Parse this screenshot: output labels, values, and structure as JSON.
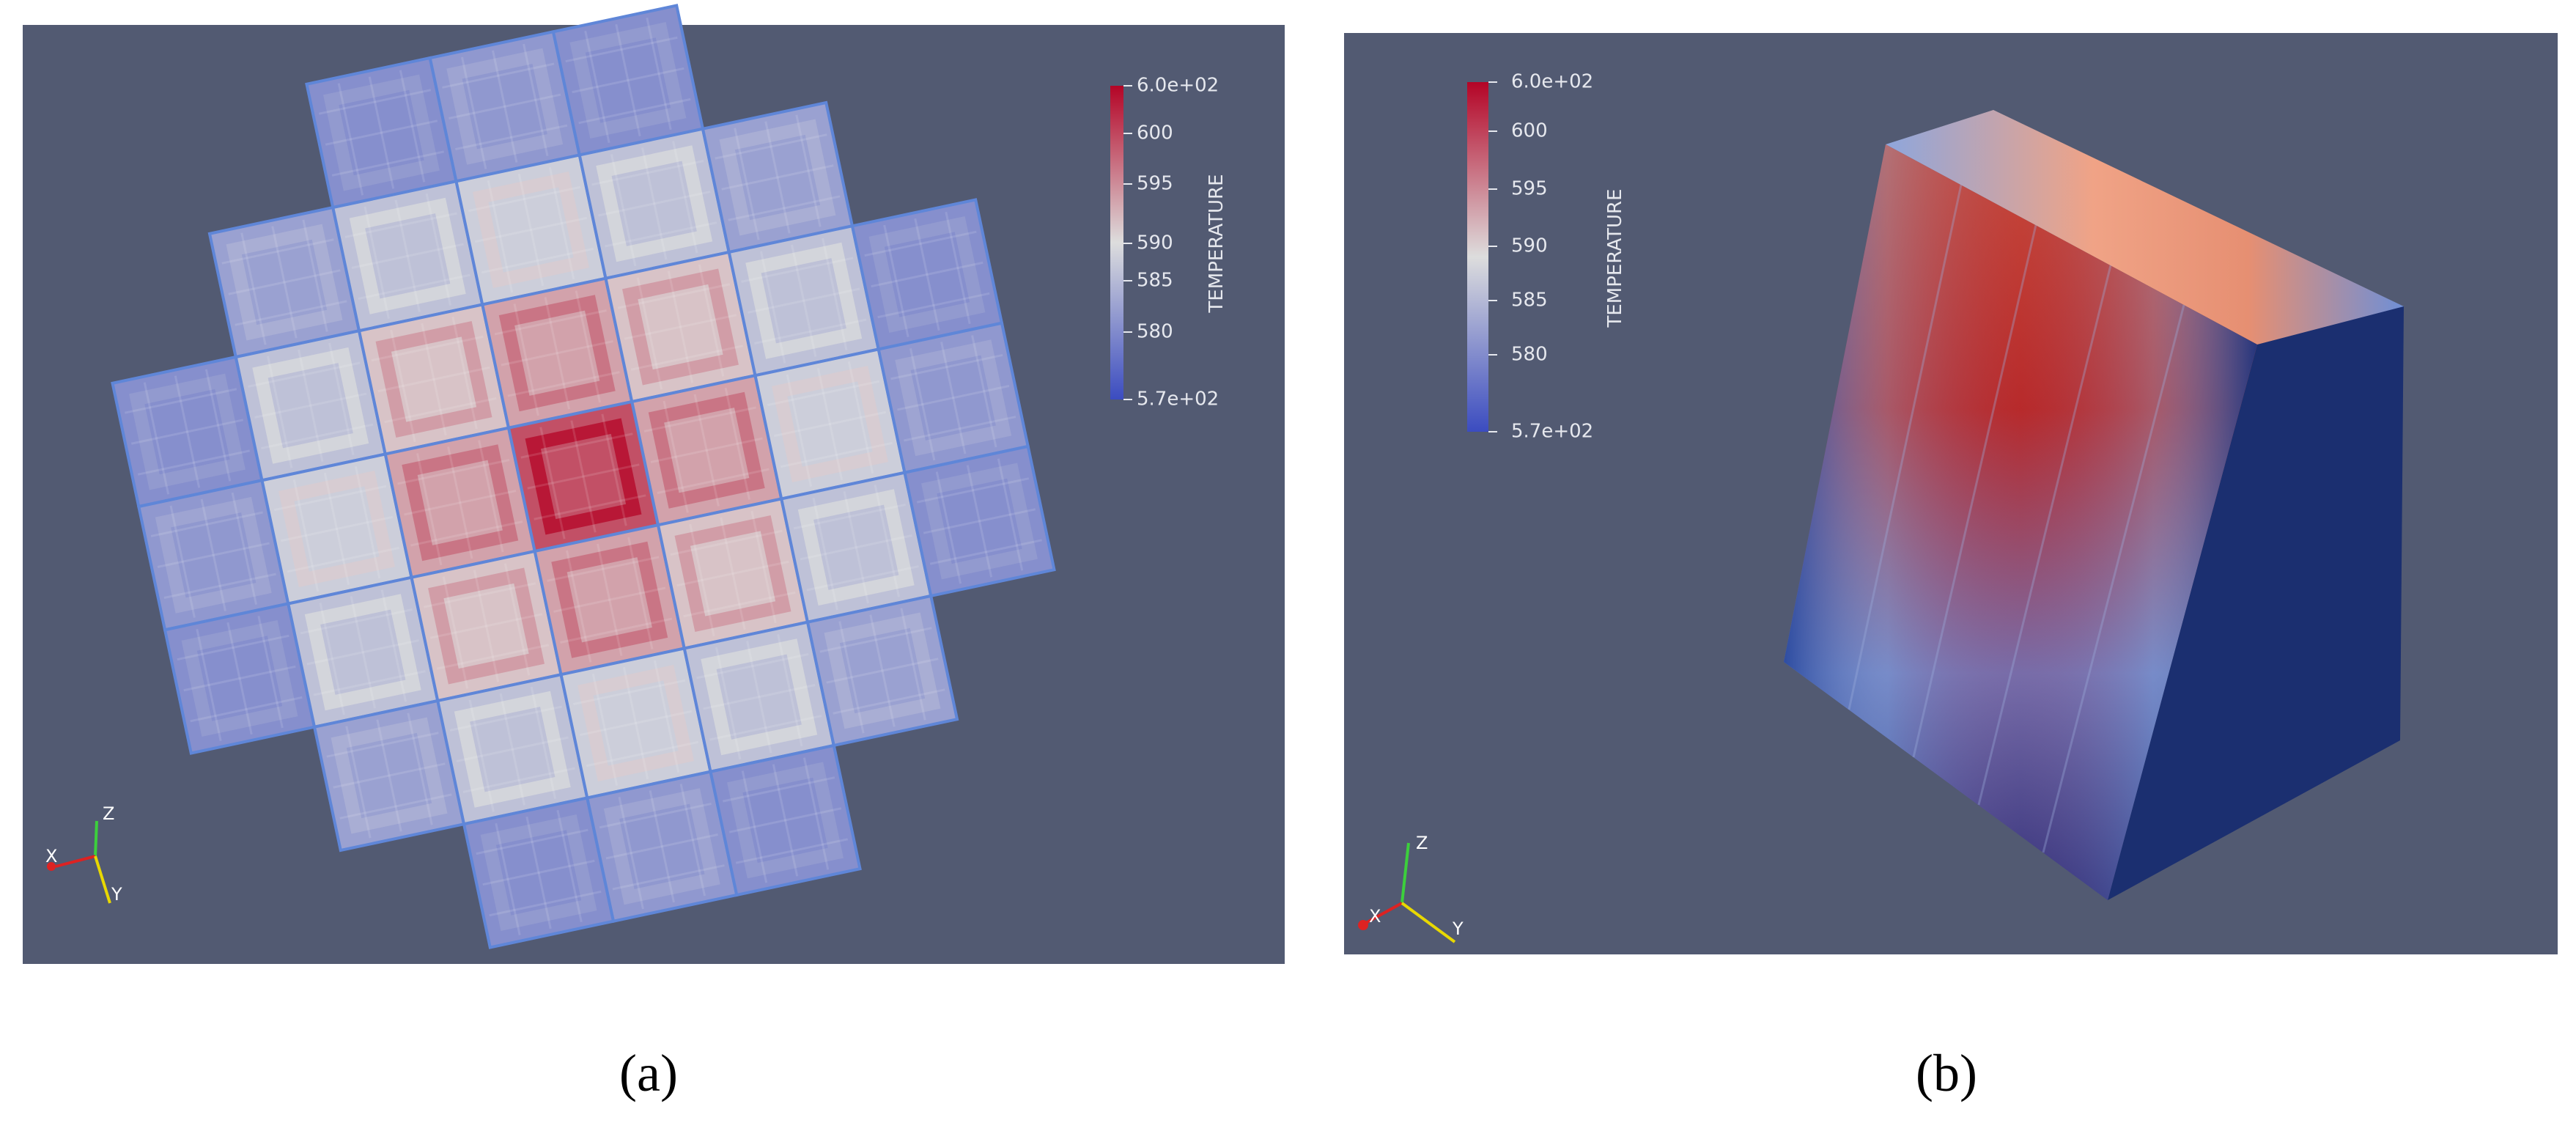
{
  "panels": [
    {
      "caption": "(a)",
      "colorbar": {
        "title": "TEMPERATURE",
        "labels": [
          "6.0e+02",
          "600",
          "595",
          "590",
          "585",
          "580",
          "5.7e+02"
        ]
      },
      "axes": {
        "x": "X",
        "y": "Y",
        "z": "Z"
      }
    },
    {
      "caption": "(b)",
      "colorbar": {
        "title": "TEMPERATURE",
        "labels": [
          "6.0e+02",
          "600",
          "595",
          "590",
          "585",
          "580",
          "5.7e+02"
        ]
      },
      "axes": {
        "x": "X",
        "y": "Y",
        "z": "Z"
      }
    }
  ]
}
